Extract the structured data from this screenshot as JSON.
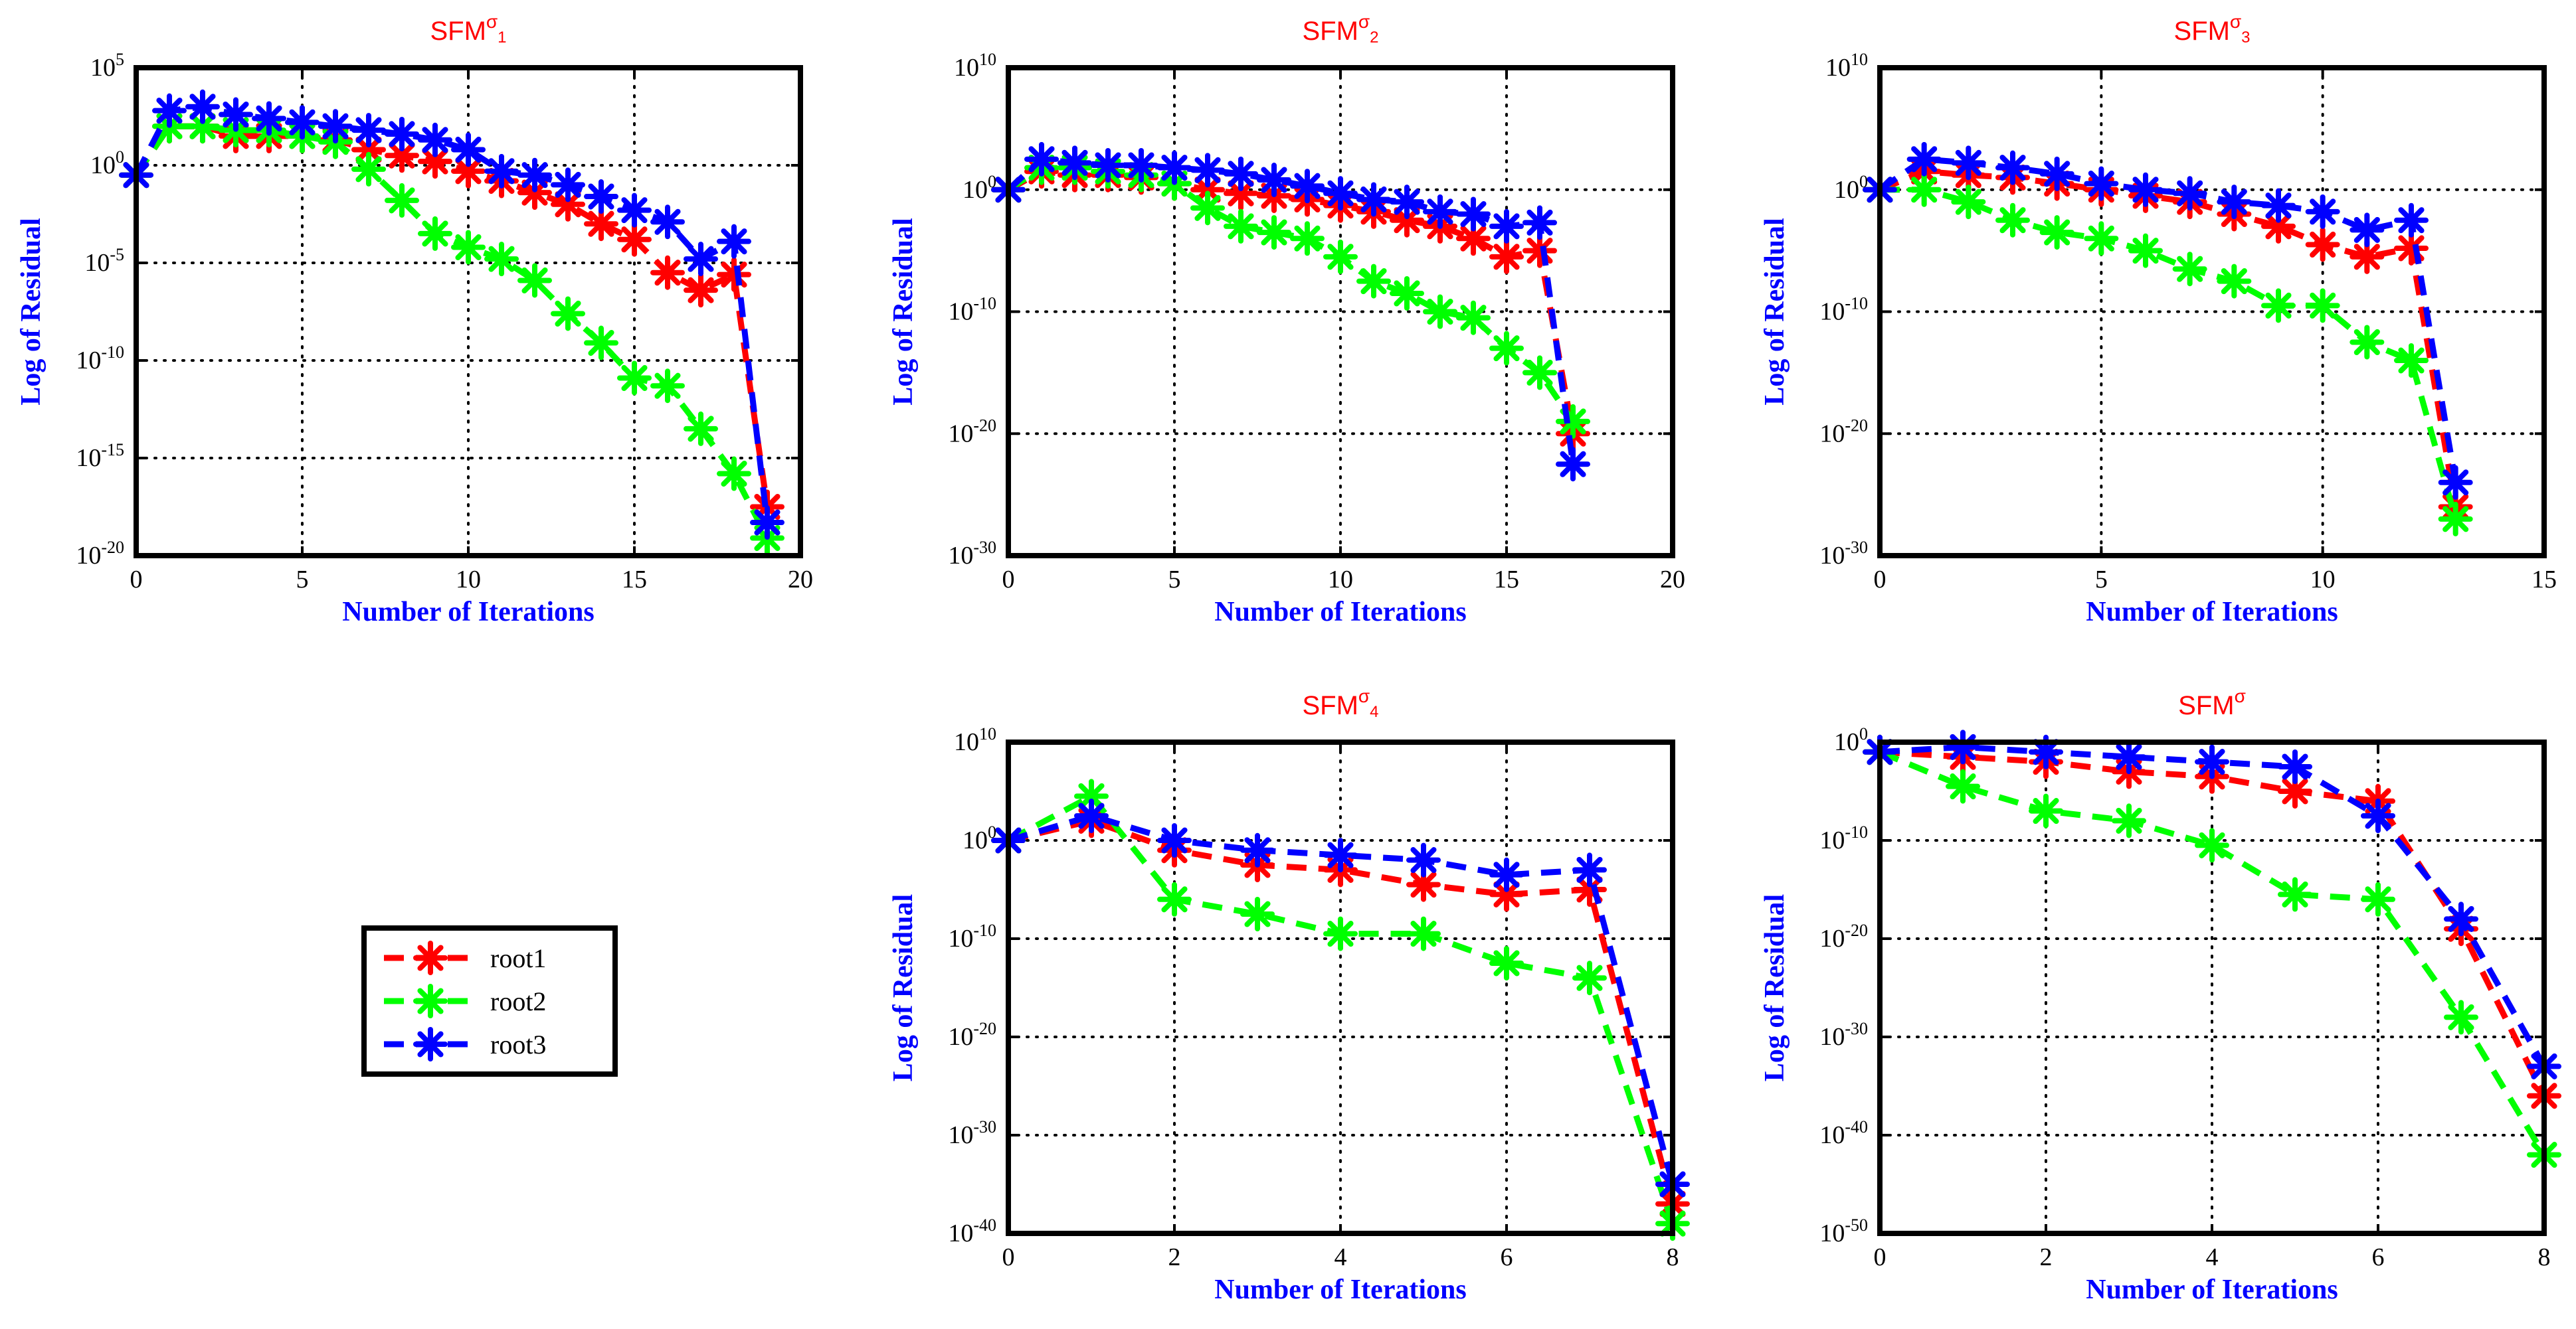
{
  "figure": {
    "legend": {
      "placement": "bottom-left",
      "entries": [
        {
          "series": "root1",
          "label": "root1"
        },
        {
          "series": "root2",
          "label": "root2"
        },
        {
          "series": "root3",
          "label": "root3"
        }
      ]
    },
    "colors": {
      "root1": "#ff0000",
      "root2": "#00ff00",
      "root3": "#0000ff",
      "title": "#ff0000",
      "axis_label": "#0000ff",
      "grid": "#000000"
    }
  },
  "chart_data": [
    {
      "id": "sfm-sigma-1",
      "type": "line",
      "title": {
        "base": "SFM",
        "sup": "σ",
        "sub": "1"
      },
      "xlabel": "Number of Iterations",
      "ylabel": "Log of Residual",
      "yscale": "log",
      "grid": true,
      "xlim": [
        0,
        20
      ],
      "xticks": [
        0,
        5,
        10,
        15,
        20
      ],
      "ylim_log10": [
        -20,
        5
      ],
      "yticks": [
        {
          "base": "10",
          "exp": "5"
        },
        {
          "base": "10",
          "exp": "0"
        },
        {
          "base": "10",
          "exp": "-5"
        },
        {
          "base": "10",
          "exp": "-10"
        },
        {
          "base": "10",
          "exp": "-15"
        },
        {
          "base": "10",
          "exp": "-20"
        }
      ],
      "ytick_values_log10": [
        5,
        0,
        -5,
        -10,
        -15,
        -20
      ],
      "series": [
        {
          "name": "root1",
          "x": [
            0,
            1,
            2,
            3,
            4,
            5,
            6,
            7,
            8,
            9,
            10,
            11,
            12,
            13,
            14,
            15,
            16,
            17,
            18,
            19
          ],
          "log10_y": [
            -0.5,
            2,
            2,
            1.5,
            1.5,
            1.5,
            1.3,
            0.8,
            0.5,
            0.2,
            -0.3,
            -0.8,
            -1.4,
            -2,
            -3,
            -3.8,
            -5.5,
            -6.4,
            -5.6,
            -17.5
          ]
        },
        {
          "name": "root2",
          "x": [
            0,
            1,
            2,
            3,
            4,
            5,
            6,
            7,
            8,
            9,
            10,
            11,
            12,
            13,
            14,
            15,
            16,
            17,
            18,
            19
          ],
          "log10_y": [
            -0.5,
            2,
            2,
            1.8,
            1.8,
            1.5,
            1.2,
            -0.2,
            -1.8,
            -3.5,
            -4.2,
            -4.8,
            -5.9,
            -7.6,
            -9.1,
            -10.9,
            -11.3,
            -13.5,
            -15.8,
            -19.1
          ]
        },
        {
          "name": "root3",
          "x": [
            0,
            1,
            2,
            3,
            4,
            5,
            6,
            7,
            8,
            9,
            10,
            11,
            12,
            13,
            14,
            15,
            16,
            17,
            18,
            19
          ],
          "log10_y": [
            -0.5,
            2.8,
            3,
            2.6,
            2.4,
            2.2,
            2,
            1.8,
            1.6,
            1.3,
            0.8,
            -0.3,
            -0.5,
            -1,
            -1.6,
            -2.3,
            -2.9,
            -4.8,
            -3.9,
            -18.3
          ]
        }
      ]
    },
    {
      "id": "sfm-sigma-2",
      "type": "line",
      "title": {
        "base": "SFM",
        "sup": "σ",
        "sub": "2"
      },
      "xlabel": "Number of Iterations",
      "ylabel": "Log of Residual",
      "yscale": "log",
      "grid": true,
      "xlim": [
        0,
        20
      ],
      "xticks": [
        0,
        5,
        10,
        15,
        20
      ],
      "ylim_log10": [
        -30,
        10
      ],
      "yticks": [
        {
          "base": "10",
          "exp": "10"
        },
        {
          "base": "10",
          "exp": "0"
        },
        {
          "base": "10",
          "exp": "-10"
        },
        {
          "base": "10",
          "exp": "-20"
        },
        {
          "base": "10",
          "exp": "-30"
        }
      ],
      "ytick_values_log10": [
        10,
        0,
        -10,
        -20,
        -30
      ],
      "series": [
        {
          "name": "root1",
          "x": [
            0,
            1,
            2,
            3,
            4,
            5,
            6,
            7,
            8,
            9,
            10,
            11,
            12,
            13,
            14,
            15,
            16,
            17
          ],
          "log10_y": [
            0,
            1.5,
            1.2,
            1.2,
            1,
            0.5,
            0,
            -0.3,
            -0.5,
            -0.8,
            -1.3,
            -1.8,
            -2.5,
            -3,
            -4,
            -5.5,
            -5,
            -20
          ]
        },
        {
          "name": "root2",
          "x": [
            0,
            1,
            2,
            3,
            4,
            5,
            6,
            7,
            8,
            9,
            10,
            11,
            12,
            13,
            14,
            15,
            16,
            17
          ],
          "log10_y": [
            0,
            1.8,
            1.8,
            1.5,
            1.2,
            0.5,
            -1.5,
            -3,
            -3.5,
            -4,
            -5.5,
            -7.5,
            -8.5,
            -10,
            -10.5,
            -13,
            -15,
            -19
          ]
        },
        {
          "name": "root3",
          "x": [
            0,
            1,
            2,
            3,
            4,
            5,
            6,
            7,
            8,
            9,
            10,
            11,
            12,
            13,
            14,
            15,
            16,
            17
          ],
          "log10_y": [
            0,
            2.5,
            2.2,
            2,
            2,
            1.8,
            1.6,
            1.3,
            0.8,
            0.3,
            -0.3,
            -0.8,
            -1,
            -1.8,
            -2,
            -3,
            -2.7,
            -22.5
          ]
        }
      ]
    },
    {
      "id": "sfm-sigma-3",
      "type": "line",
      "title": {
        "base": "SFM",
        "sup": "σ",
        "sub": "3"
      },
      "xlabel": "Number of Iterations",
      "ylabel": "Log of Residual",
      "yscale": "log",
      "grid": true,
      "xlim": [
        0,
        15
      ],
      "xticks": [
        0,
        5,
        10,
        15
      ],
      "ylim_log10": [
        -30,
        10
      ],
      "yticks": [
        {
          "base": "10",
          "exp": "10"
        },
        {
          "base": "10",
          "exp": "0"
        },
        {
          "base": "10",
          "exp": "-10"
        },
        {
          "base": "10",
          "exp": "-20"
        },
        {
          "base": "10",
          "exp": "-30"
        }
      ],
      "ytick_values_log10": [
        10,
        0,
        -10,
        -20,
        -30
      ],
      "series": [
        {
          "name": "root1",
          "x": [
            0,
            1,
            2,
            3,
            4,
            5,
            6,
            7,
            8,
            9,
            10,
            11,
            12,
            13
          ],
          "log10_y": [
            0,
            1.5,
            1.2,
            1,
            0.5,
            0,
            -0.5,
            -1,
            -2,
            -3,
            -4.5,
            -5.5,
            -4.8,
            -26
          ]
        },
        {
          "name": "root2",
          "x": [
            0,
            1,
            2,
            3,
            4,
            5,
            6,
            7,
            8,
            9,
            10,
            11,
            12,
            13
          ],
          "log10_y": [
            0,
            0,
            -1,
            -2.5,
            -3.5,
            -4,
            -5,
            -6.5,
            -7.5,
            -9.5,
            -9.5,
            -12.5,
            -14,
            -27
          ]
        },
        {
          "name": "root3",
          "x": [
            0,
            1,
            2,
            3,
            4,
            5,
            6,
            7,
            8,
            9,
            10,
            11,
            12,
            13
          ],
          "log10_y": [
            0,
            2.5,
            2.2,
            1.8,
            1.3,
            0.5,
            0,
            -0.3,
            -1,
            -1.3,
            -1.8,
            -3.3,
            -2.5,
            -24
          ]
        }
      ]
    },
    {
      "id": "sfm-sigma-4",
      "type": "line",
      "title": {
        "base": "SFM",
        "sup": "σ",
        "sub": "4"
      },
      "xlabel": "Number of Iterations",
      "ylabel": "Log of Residual",
      "yscale": "log",
      "grid": true,
      "xlim": [
        0,
        8
      ],
      "xticks": [
        0,
        2,
        4,
        6,
        8
      ],
      "ylim_log10": [
        -40,
        10
      ],
      "yticks": [
        {
          "base": "10",
          "exp": "10"
        },
        {
          "base": "10",
          "exp": "0"
        },
        {
          "base": "10",
          "exp": "-10"
        },
        {
          "base": "10",
          "exp": "-20"
        },
        {
          "base": "10",
          "exp": "-30"
        },
        {
          "base": "10",
          "exp": "-40"
        }
      ],
      "ytick_values_log10": [
        10,
        0,
        -10,
        -20,
        -30,
        -40
      ],
      "series": [
        {
          "name": "root1",
          "x": [
            0,
            1,
            2,
            3,
            4,
            5,
            6,
            7,
            8
          ],
          "log10_y": [
            0,
            2,
            -1,
            -2.5,
            -3,
            -4.5,
            -5.5,
            -5,
            -37
          ]
        },
        {
          "name": "root2",
          "x": [
            0,
            1,
            2,
            3,
            4,
            5,
            6,
            7,
            8
          ],
          "log10_y": [
            0,
            4.5,
            -6,
            -7.5,
            -9.5,
            -9.5,
            -12.5,
            -14,
            -39
          ]
        },
        {
          "name": "root3",
          "x": [
            0,
            1,
            2,
            3,
            4,
            5,
            6,
            7,
            8
          ],
          "log10_y": [
            0,
            2.5,
            0,
            -1,
            -1.5,
            -2,
            -3.5,
            -3,
            -35
          ]
        }
      ]
    },
    {
      "id": "sfm-sigma",
      "type": "line",
      "title": {
        "base": "SFM",
        "sup": "σ",
        "sub": ""
      },
      "xlabel": "Number of Iterations",
      "ylabel": "Log of Residual",
      "yscale": "log",
      "grid": true,
      "xlim": [
        0,
        8
      ],
      "xticks": [
        0,
        2,
        4,
        6,
        8
      ],
      "ylim_log10": [
        -50,
        0
      ],
      "yticks": [
        {
          "base": "10",
          "exp": "0"
        },
        {
          "base": "10",
          "exp": "-10"
        },
        {
          "base": "10",
          "exp": "-20"
        },
        {
          "base": "10",
          "exp": "-30"
        },
        {
          "base": "10",
          "exp": "-40"
        },
        {
          "base": "10",
          "exp": "-50"
        }
      ],
      "ytick_values_log10": [
        0,
        -10,
        -20,
        -30,
        -40,
        -50
      ],
      "series": [
        {
          "name": "root1",
          "x": [
            0,
            1,
            2,
            3,
            4,
            5,
            6,
            7,
            8
          ],
          "log10_y": [
            -1,
            -1.5,
            -2,
            -3,
            -3.5,
            -5,
            -6,
            -19,
            -36
          ]
        },
        {
          "name": "root2",
          "x": [
            0,
            1,
            2,
            3,
            4,
            5,
            6,
            7,
            8
          ],
          "log10_y": [
            -1,
            -4.5,
            -7,
            -8,
            -10.5,
            -15.5,
            -16,
            -28,
            -42
          ]
        },
        {
          "name": "root3",
          "x": [
            0,
            1,
            2,
            3,
            4,
            5,
            6,
            7,
            8
          ],
          "log10_y": [
            -1,
            -0.5,
            -1,
            -1.5,
            -2,
            -2.5,
            -7.5,
            -18,
            -33
          ]
        }
      ]
    }
  ]
}
